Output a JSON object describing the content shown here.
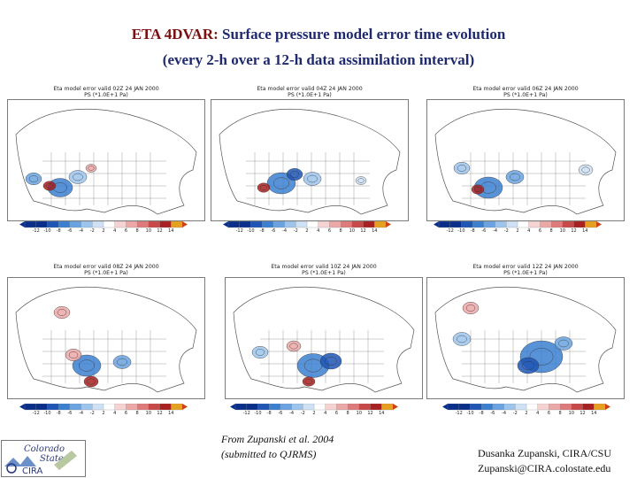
{
  "title": {
    "prefix": "ETA 4DVAR:",
    "rest": " Surface pressure model error time evolution",
    "line2": "(every 2-h over a 12-h data assimilation interval)"
  },
  "panels": [
    {
      "title": "Eta model error valid 02Z 24 JAN 2000",
      "subtitle": "PS (*1.0E+1 Pa)"
    },
    {
      "title": "Eta model error valid 04Z 24 JAN 2000",
      "subtitle": "PS (*1.0E+1 Pa)"
    },
    {
      "title": "Eta model error valid 06Z 24 JAN 2000",
      "subtitle": "PS (*1.0E+1 Pa)"
    },
    {
      "title": "Eta model error valid 08Z 24 JAN 2000",
      "subtitle": "PS (*1.0E+1 Pa)"
    },
    {
      "title": "Eta model error valid 10Z 24 JAN 2000",
      "subtitle": "PS (*1.0E+1 Pa)"
    },
    {
      "title": "Eta model error valid 12Z 24 JAN 2000",
      "subtitle": "PS (*1.0E+1 Pa)"
    }
  ],
  "colorbar": {
    "labels": [
      "-12",
      "-10",
      "-8",
      "-6",
      "-4",
      "-2",
      "2",
      "4",
      "6",
      "8",
      "10",
      "12",
      "14"
    ],
    "colors": [
      "#0a2f8a",
      "#1f55b5",
      "#3b7fd0",
      "#6aa3e0",
      "#9cc4ec",
      "#cfe1f5",
      "#ffffff",
      "#f6d3d3",
      "#eca7a7",
      "#de7a7a",
      "#c94848",
      "#a82020",
      "#e6a020"
    ]
  },
  "credit": {
    "line1": "From Zupanski et al.  2004",
    "line2": "(submitted to QJRMS)"
  },
  "author": {
    "line1": "Dusanka Zupanski,  CIRA/CSU",
    "line2": "Zupanski@CIRA.colostate.edu"
  },
  "logo": {
    "text1": "Colorado",
    "text2": "State",
    "text3": "CIRA"
  }
}
